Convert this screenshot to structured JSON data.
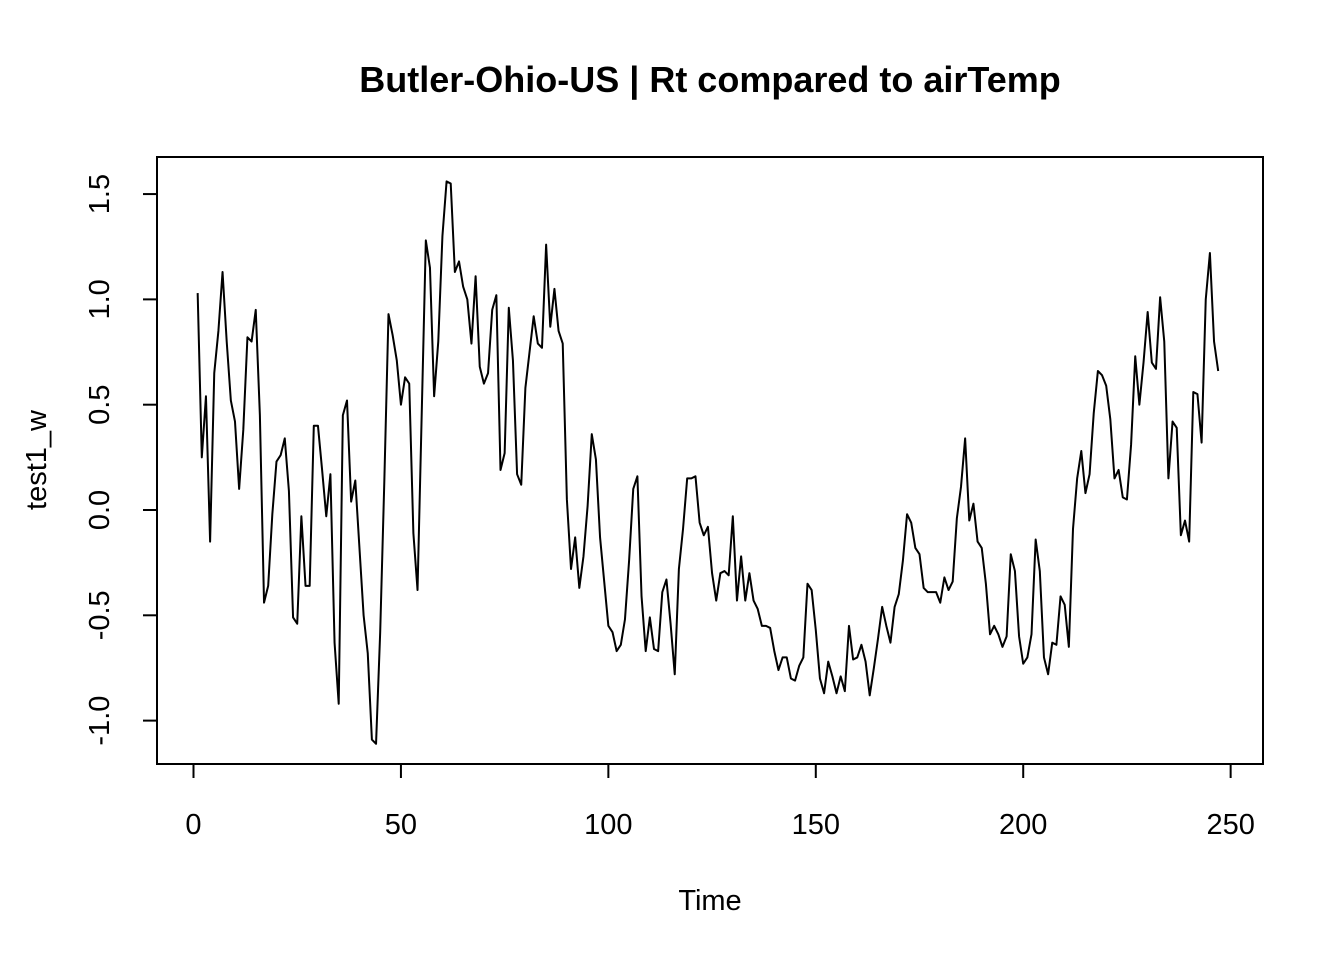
{
  "chart_data": {
    "type": "line",
    "title": "Butler-Ohio-US | Rt compared to airTemp",
    "xlabel": "Time",
    "ylabel": "test1_w",
    "xlim": [
      -8.8,
      257.8
    ],
    "ylim": [
      -1.206,
      1.676
    ],
    "x_ticks": [
      0,
      50,
      100,
      150,
      200,
      250
    ],
    "y_ticks": [
      -1.0,
      -0.5,
      0.0,
      0.5,
      1.0,
      1.5
    ],
    "x_tick_labels": [
      "0",
      "50",
      "100",
      "150",
      "200",
      "250"
    ],
    "y_tick_labels": [
      "-1.0",
      "-0.5",
      "0.0",
      "0.5",
      "1.0",
      "1.5"
    ],
    "grid": false,
    "line_color": "#000000",
    "series": [
      {
        "x_start": 1,
        "x_step": 1,
        "values": [
          1.03,
          0.25,
          0.54,
          -0.15,
          0.65,
          0.85,
          1.13,
          0.8,
          0.52,
          0.42,
          0.1,
          0.38,
          0.82,
          0.8,
          0.95,
          0.45,
          -0.44,
          -0.36,
          -0.02,
          0.23,
          0.26,
          0.34,
          0.09,
          -0.51,
          -0.54,
          -0.03,
          -0.36,
          -0.36,
          0.4,
          0.4,
          0.19,
          -0.03,
          0.17,
          -0.63,
          -0.92,
          0.45,
          0.52,
          0.04,
          0.14,
          -0.18,
          -0.5,
          -0.68,
          -1.09,
          -1.11,
          -0.58,
          0.14,
          0.93,
          0.83,
          0.71,
          0.5,
          0.63,
          0.6,
          -0.11,
          -0.38,
          0.45,
          1.28,
          1.15,
          0.54,
          0.8,
          1.3,
          1.56,
          1.55,
          1.13,
          1.18,
          1.06,
          1.0,
          0.79,
          1.11,
          0.68,
          0.6,
          0.65,
          0.95,
          1.02,
          0.19,
          0.27,
          0.96,
          0.71,
          0.17,
          0.12,
          0.58,
          0.75,
          0.92,
          0.79,
          0.77,
          1.26,
          0.87,
          1.05,
          0.85,
          0.79,
          0.05,
          -0.28,
          -0.13,
          -0.37,
          -0.22,
          0.02,
          0.36,
          0.24,
          -0.13,
          -0.34,
          -0.55,
          -0.58,
          -0.67,
          -0.64,
          -0.52,
          -0.24,
          0.1,
          0.16,
          -0.41,
          -0.67,
          -0.51,
          -0.66,
          -0.67,
          -0.39,
          -0.33,
          -0.54,
          -0.78,
          -0.28,
          -0.09,
          0.15,
          0.15,
          0.16,
          -0.06,
          -0.12,
          -0.08,
          -0.3,
          -0.43,
          -0.3,
          -0.29,
          -0.31,
          -0.03,
          -0.43,
          -0.22,
          -0.43,
          -0.3,
          -0.43,
          -0.47,
          -0.55,
          -0.55,
          -0.56,
          -0.67,
          -0.76,
          -0.7,
          -0.7,
          -0.8,
          -0.81,
          -0.74,
          -0.7,
          -0.35,
          -0.38,
          -0.57,
          -0.8,
          -0.87,
          -0.72,
          -0.79,
          -0.87,
          -0.79,
          -0.86,
          -0.55,
          -0.71,
          -0.7,
          -0.64,
          -0.72,
          -0.88,
          -0.75,
          -0.61,
          -0.46,
          -0.55,
          -0.63,
          -0.46,
          -0.4,
          -0.24,
          -0.02,
          -0.06,
          -0.18,
          -0.21,
          -0.37,
          -0.39,
          -0.39,
          -0.39,
          -0.44,
          -0.32,
          -0.38,
          -0.34,
          -0.04,
          0.11,
          0.34,
          -0.05,
          0.03,
          -0.15,
          -0.18,
          -0.35,
          -0.59,
          -0.55,
          -0.59,
          -0.65,
          -0.6,
          -0.21,
          -0.29,
          -0.6,
          -0.73,
          -0.7,
          -0.59,
          -0.14,
          -0.29,
          -0.7,
          -0.78,
          -0.63,
          -0.64,
          -0.41,
          -0.45,
          -0.65,
          -0.09,
          0.15,
          0.28,
          0.08,
          0.17,
          0.46,
          0.66,
          0.64,
          0.59,
          0.43,
          0.15,
          0.19,
          0.06,
          0.05,
          0.31,
          0.73,
          0.5,
          0.7,
          0.94,
          0.7,
          0.67,
          1.01,
          0.8,
          0.15,
          0.42,
          0.39,
          -0.12,
          -0.05,
          -0.15,
          0.56,
          0.55,
          0.32,
          1.0,
          1.22,
          0.8,
          0.66
        ]
      }
    ]
  }
}
